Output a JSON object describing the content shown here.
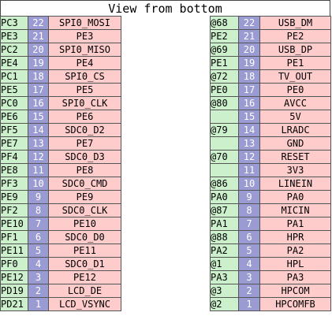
{
  "title": "View from bottom",
  "colors": {
    "port": "#ccf0cc",
    "pin": "#9b9bd3",
    "func": "#ffcccc"
  },
  "left": [
    {
      "port": "PC3",
      "pin": "22",
      "func": "SPI0_MOSI"
    },
    {
      "port": "PE3",
      "pin": "21",
      "func": "PE3"
    },
    {
      "port": "PC2",
      "pin": "20",
      "func": "SPI0_MISO"
    },
    {
      "port": "PE4",
      "pin": "19",
      "func": "PE4"
    },
    {
      "port": "PC1",
      "pin": "18",
      "func": "SPI0_CS"
    },
    {
      "port": "PE5",
      "pin": "17",
      "func": "PE5"
    },
    {
      "port": "PC0",
      "pin": "16",
      "func": "SPI0_CLK"
    },
    {
      "port": "PE6",
      "pin": "15",
      "func": "PE6"
    },
    {
      "port": "PF5",
      "pin": "14",
      "func": "SDC0_D2"
    },
    {
      "port": "PE7",
      "pin": "13",
      "func": "PE7"
    },
    {
      "port": "PF4",
      "pin": "12",
      "func": "SDC0_D3"
    },
    {
      "port": "PE8",
      "pin": "11",
      "func": "PE8"
    },
    {
      "port": "PF3",
      "pin": "10",
      "func": "SDC0_CMD"
    },
    {
      "port": "PE9",
      "pin": "9",
      "func": "PE9"
    },
    {
      "port": "PF2",
      "pin": "8",
      "func": "SDC0_CLK"
    },
    {
      "port": "PE10",
      "pin": "7",
      "func": "PE10"
    },
    {
      "port": "PF1",
      "pin": "6",
      "func": "SDC0_D0"
    },
    {
      "port": "PE11",
      "pin": "5",
      "func": "PE11"
    },
    {
      "port": "PF0",
      "pin": "4",
      "func": "SDC0_D1"
    },
    {
      "port": "PE12",
      "pin": "3",
      "func": "PE12"
    },
    {
      "port": "PD19",
      "pin": "2",
      "func": "LCD_DE"
    },
    {
      "port": "PD21",
      "pin": "1",
      "func": "LCD_VSYNC"
    }
  ],
  "right": [
    {
      "port": "@68",
      "pin": "22",
      "func": "USB_DM"
    },
    {
      "port": "PE2",
      "pin": "21",
      "func": "PE2"
    },
    {
      "port": "@69",
      "pin": "20",
      "func": "USB_DP"
    },
    {
      "port": "PE1",
      "pin": "19",
      "func": "PE1"
    },
    {
      "port": "@72",
      "pin": "18",
      "func": "TV_OUT"
    },
    {
      "port": "PE0",
      "pin": "17",
      "func": "PE0"
    },
    {
      "port": "@80",
      "pin": "16",
      "func": "AVCC"
    },
    {
      "port": "",
      "pin": "15",
      "func": "5V"
    },
    {
      "port": "@79",
      "pin": "14",
      "func": "LRADC"
    },
    {
      "port": "",
      "pin": "13",
      "func": "GND"
    },
    {
      "port": "@70",
      "pin": "12",
      "func": "RESET"
    },
    {
      "port": "",
      "pin": "11",
      "func": "3V3"
    },
    {
      "port": "@86",
      "pin": "10",
      "func": "LINEIN"
    },
    {
      "port": "PA0",
      "pin": "9",
      "func": "PA0"
    },
    {
      "port": "@87",
      "pin": "8",
      "func": "MICIN"
    },
    {
      "port": "PA1",
      "pin": "7",
      "func": "PA1"
    },
    {
      "port": "@88",
      "pin": "6",
      "func": "HPR"
    },
    {
      "port": "PA2",
      "pin": "5",
      "func": "PA2"
    },
    {
      "port": "@1",
      "pin": "4",
      "func": "HPL"
    },
    {
      "port": "PA3",
      "pin": "3",
      "func": "PA3"
    },
    {
      "port": "@3",
      "pin": "2",
      "func": "HPCOM"
    },
    {
      "port": "@2",
      "pin": "1",
      "func": "HPCOMFB"
    }
  ]
}
